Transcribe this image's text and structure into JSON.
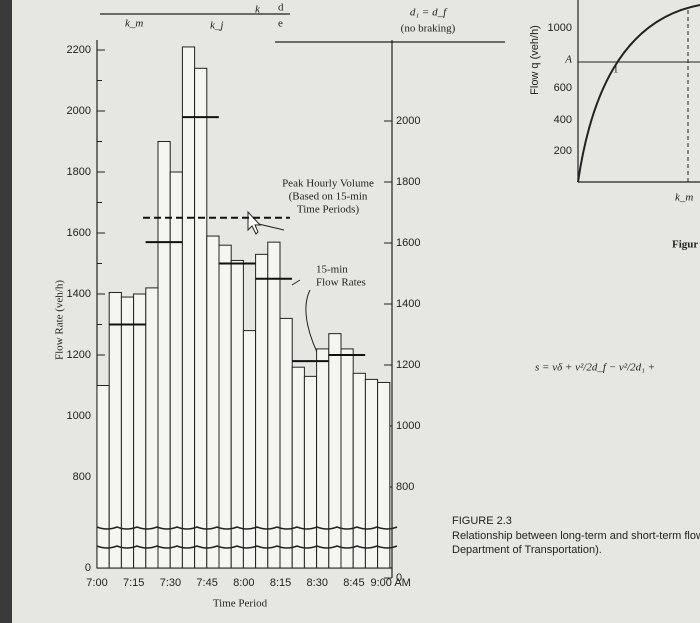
{
  "chart_data": {
    "type": "bar",
    "y_label": "Flow Rate (veh/h)",
    "x_label": "Time Period",
    "x_tick_labels": [
      "7:00",
      "7:15",
      "7:30",
      "7:45",
      "8:00",
      "8:15",
      "8:30",
      "8:45",
      "9:00 AM"
    ],
    "values": [
      1100,
      1405,
      1390,
      1400,
      1420,
      1900,
      1800,
      2210,
      2140,
      1590,
      1560,
      1510,
      1280,
      1530,
      1570,
      1320,
      1160,
      1130,
      1220,
      1270,
      1220,
      1140,
      1120,
      1110
    ],
    "color": "#f5f5f2",
    "ylim": [
      0,
      2200
    ],
    "axis_break": [
      0,
      800
    ],
    "yticks": [
      0,
      800,
      1000,
      1200,
      1400,
      1600,
      1800,
      2000,
      2200
    ],
    "y2lim": [
      0,
      2200
    ],
    "y2ticks": [
      0,
      800,
      1000,
      1200,
      1400,
      1600,
      1800,
      2000
    ],
    "fifteen_min": {
      "name": [
        "15-min",
        "Flow Rates"
      ],
      "values": [
        1300,
        1570,
        1980,
        1500,
        1450,
        1180,
        1200,
        null
      ]
    },
    "peak_hour": {
      "name": [
        "Peak Hourly Volume",
        "(Based on 15-min",
        "Time Periods)"
      ],
      "value": 1650
    }
  },
  "other_text": {
    "top_labels": [
      "k_m",
      "k_j",
      "k",
      "d",
      "e"
    ],
    "braking": [
      "d₁ = d_f",
      "(no braking)"
    ],
    "right_axis_label": "Flow q (veh/h)",
    "right_ticks": [
      "1000",
      "600",
      "400",
      "200"
    ],
    "point_a": "A",
    "point_one": "1",
    "km_right": "k_m",
    "figure_cut": "Figur",
    "equation": "s = vδ + v²/2d_f − v²/2d₁ +",
    "caption": [
      "FIGURE 2.3",
      "Relationship between long-term and short-term flow",
      "Department of Transportation)."
    ]
  }
}
